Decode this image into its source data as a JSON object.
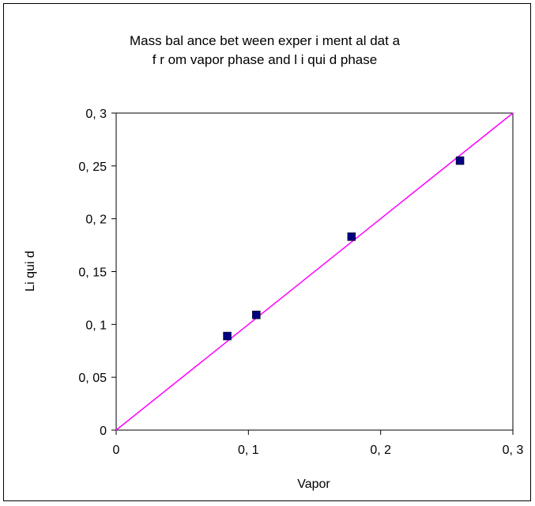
{
  "chart_data": {
    "type": "scatter",
    "title_lines": [
      "Mass bal ance bet ween exper i ment al dat a",
      "f r om vapor phase and l i qui d phase"
    ],
    "xlabel": "Vapor",
    "ylabel": "Li qui d",
    "xlim": [
      0,
      0.3
    ],
    "ylim": [
      0,
      0.3
    ],
    "x_ticks": [
      {
        "value": 0,
        "label": "0"
      },
      {
        "value": 0.1,
        "label": "0, 1"
      },
      {
        "value": 0.2,
        "label": "0, 2"
      },
      {
        "value": 0.3,
        "label": "0, 3"
      }
    ],
    "y_ticks": [
      {
        "value": 0,
        "label": "0"
      },
      {
        "value": 0.05,
        "label": "0, 05"
      },
      {
        "value": 0.1,
        "label": "0, 1"
      },
      {
        "value": 0.15,
        "label": "0, 15"
      },
      {
        "value": 0.2,
        "label": "0, 2"
      },
      {
        "value": 0.25,
        "label": "0, 25"
      },
      {
        "value": 0.3,
        "label": "0, 3"
      }
    ],
    "grid": false,
    "points": [
      {
        "x": 0.084,
        "y": 0.089
      },
      {
        "x": 0.106,
        "y": 0.109
      },
      {
        "x": 0.178,
        "y": 0.183
      },
      {
        "x": 0.26,
        "y": 0.255
      }
    ],
    "reference_line": {
      "from": [
        0,
        0
      ],
      "to": [
        0.3,
        0.3
      ],
      "color": "#ff00ff"
    },
    "marker_color": "#000080"
  }
}
